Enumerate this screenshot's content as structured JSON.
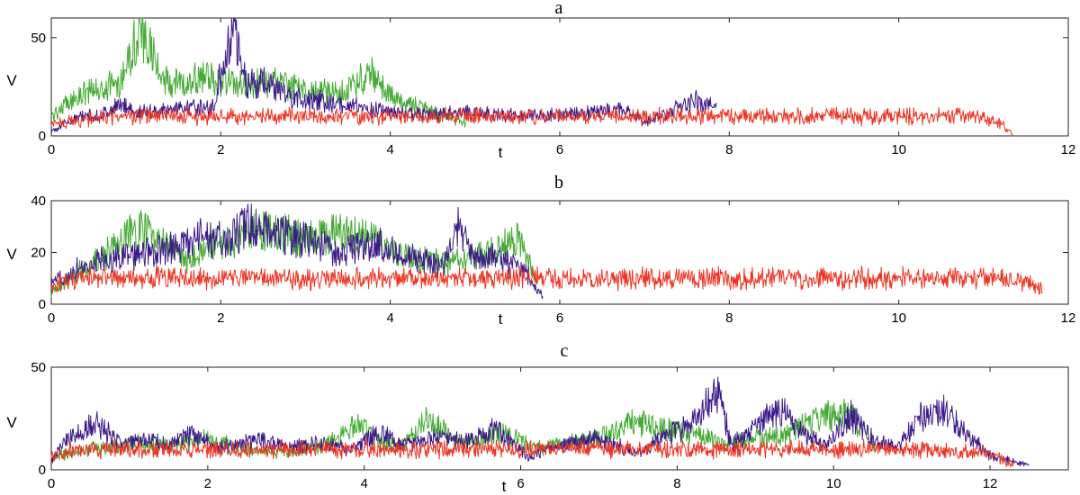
{
  "chart_data": [
    {
      "type": "line",
      "title": "a",
      "xlabel": "t",
      "ylabel": "V",
      "xlim": [
        0,
        12
      ],
      "ylim": [
        0,
        60
      ],
      "xticks": [
        0,
        2,
        4,
        6,
        8,
        10,
        12
      ],
      "yticks": [
        0,
        50
      ],
      "grid": false,
      "series": [
        {
          "color": "#44aa33",
          "t_end": 4.9,
          "x": [
            0,
            0.2,
            0.4,
            0.6,
            0.8,
            0.95,
            1.05,
            1.2,
            1.4,
            1.6,
            1.8,
            2.0,
            2.2,
            2.4,
            2.6,
            2.8,
            3.0,
            3.2,
            3.4,
            3.6,
            3.75,
            3.9,
            4.1,
            4.3,
            4.5,
            4.7,
            4.9
          ],
          "values": [
            10,
            17,
            22,
            24,
            27,
            45,
            54,
            40,
            25,
            28,
            30,
            28,
            26,
            27,
            28,
            25,
            24,
            22,
            22,
            26,
            33,
            24,
            18,
            15,
            12,
            9,
            7
          ]
        },
        {
          "color": "#3d1a8a",
          "t_end": 7.85,
          "x": [
            0,
            0.3,
            0.6,
            0.85,
            1.0,
            1.3,
            1.6,
            1.9,
            2.05,
            2.15,
            2.3,
            2.5,
            2.8,
            3.1,
            3.4,
            3.7,
            4.0,
            4.4,
            4.8,
            5.2,
            5.6,
            6.0,
            6.4,
            6.7,
            7.0,
            7.3,
            7.6,
            7.85
          ],
          "values": [
            3,
            9,
            11,
            16,
            12,
            13,
            15,
            14,
            40,
            56,
            26,
            27,
            20,
            18,
            16,
            14,
            12,
            11,
            12,
            11,
            10,
            11,
            12,
            14,
            7,
            12,
            18,
            15
          ]
        },
        {
          "color": "#ee3322",
          "t_end": 11.35,
          "x": [
            0,
            0.5,
            1,
            2,
            3,
            4,
            5,
            6,
            7,
            8,
            9,
            10,
            11,
            11.2,
            11.35
          ],
          "values": [
            6,
            9,
            10,
            10,
            10,
            10,
            10,
            10,
            10,
            10,
            10,
            10,
            10,
            6,
            0
          ]
        }
      ]
    },
    {
      "type": "line",
      "title": "b",
      "xlabel": "t",
      "ylabel": "V",
      "xlim": [
        0,
        12
      ],
      "ylim": [
        0,
        40
      ],
      "xticks": [
        0,
        2,
        4,
        6,
        8,
        10,
        12
      ],
      "yticks": [
        0,
        20,
        40
      ],
      "grid": false,
      "series": [
        {
          "color": "#44aa33",
          "t_end": 5.75,
          "x": [
            0,
            0.3,
            0.6,
            0.9,
            1.05,
            1.3,
            1.6,
            1.9,
            2.2,
            2.5,
            2.8,
            3.1,
            3.4,
            3.7,
            4.0,
            4.3,
            4.6,
            4.9,
            5.2,
            5.5,
            5.75
          ],
          "values": [
            5,
            12,
            18,
            26,
            30,
            24,
            17,
            22,
            25,
            29,
            27,
            25,
            28,
            26,
            20,
            18,
            16,
            18,
            20,
            25,
            8
          ]
        },
        {
          "color": "#3d1a8a",
          "t_end": 5.8,
          "x": [
            0,
            0.3,
            0.6,
            0.9,
            1.2,
            1.5,
            1.8,
            2.1,
            2.3,
            2.5,
            2.8,
            3.1,
            3.4,
            3.7,
            4.0,
            4.3,
            4.6,
            4.8,
            5.0,
            5.3,
            5.6,
            5.8
          ],
          "values": [
            8,
            14,
            17,
            19,
            20,
            22,
            26,
            24,
            32,
            28,
            26,
            24,
            20,
            23,
            22,
            18,
            14,
            30,
            17,
            18,
            12,
            3
          ]
        },
        {
          "color": "#ee3322",
          "t_end": 11.7,
          "x": [
            0,
            0.3,
            1,
            2,
            3,
            4,
            5,
            6,
            7,
            8,
            9,
            10,
            11,
            11.5,
            11.7
          ],
          "values": [
            7,
            10,
            10,
            10,
            10,
            10,
            10,
            10,
            10,
            10,
            10,
            10,
            10,
            9,
            5
          ]
        }
      ]
    },
    {
      "type": "line",
      "title": "c",
      "xlabel": "t",
      "ylabel": "V",
      "xlim": [
        0,
        13
      ],
      "ylim": [
        0,
        50
      ],
      "xticks": [
        0,
        2,
        4,
        6,
        8,
        10,
        12
      ],
      "yticks": [
        0,
        50
      ],
      "grid": false,
      "series": [
        {
          "color": "#44aa33",
          "t_end": 10.55,
          "x": [
            0,
            0.5,
            1,
            1.5,
            2.0,
            2.5,
            3,
            3.5,
            3.9,
            4.2,
            4.5,
            4.8,
            5.1,
            5.4,
            5.8,
            6.2,
            6.6,
            7.0,
            7.4,
            7.8,
            8.2,
            8.6,
            9.0,
            9.4,
            9.8,
            10.2,
            10.55
          ],
          "values": [
            6,
            10,
            13,
            12,
            15,
            10,
            8,
            12,
            22,
            14,
            12,
            25,
            16,
            14,
            18,
            10,
            13,
            16,
            23,
            20,
            18,
            13,
            15,
            17,
            25,
            28,
            10
          ]
        },
        {
          "color": "#3d1a8a",
          "t_end": 12.5,
          "x": [
            0,
            0.3,
            0.6,
            0.9,
            1.2,
            1.5,
            1.8,
            2.1,
            2.4,
            2.7,
            3.0,
            3.4,
            3.8,
            4.2,
            4.5,
            4.9,
            5.3,
            5.7,
            6.1,
            6.5,
            7.0,
            7.5,
            7.9,
            8.2,
            8.5,
            8.7,
            9.0,
            9.3,
            9.6,
            9.9,
            10.2,
            10.5,
            10.8,
            11.1,
            11.4,
            11.7,
            12.0,
            12.5
          ],
          "values": [
            5,
            18,
            22,
            12,
            15,
            12,
            18,
            10,
            13,
            15,
            11,
            13,
            10,
            18,
            12,
            16,
            14,
            20,
            6,
            12,
            15,
            8,
            17,
            23,
            40,
            12,
            20,
            30,
            18,
            12,
            27,
            15,
            10,
            25,
            30,
            18,
            7,
            2
          ]
        },
        {
          "color": "#ee3322",
          "t_end": 12.3,
          "x": [
            0,
            0.3,
            1,
            2,
            3,
            4,
            5,
            6,
            7,
            8,
            9,
            10,
            11,
            12,
            12.3
          ],
          "values": [
            6,
            10,
            10,
            10,
            10,
            10,
            10,
            10,
            10,
            10,
            10,
            10,
            10,
            8,
            2
          ]
        }
      ]
    }
  ]
}
